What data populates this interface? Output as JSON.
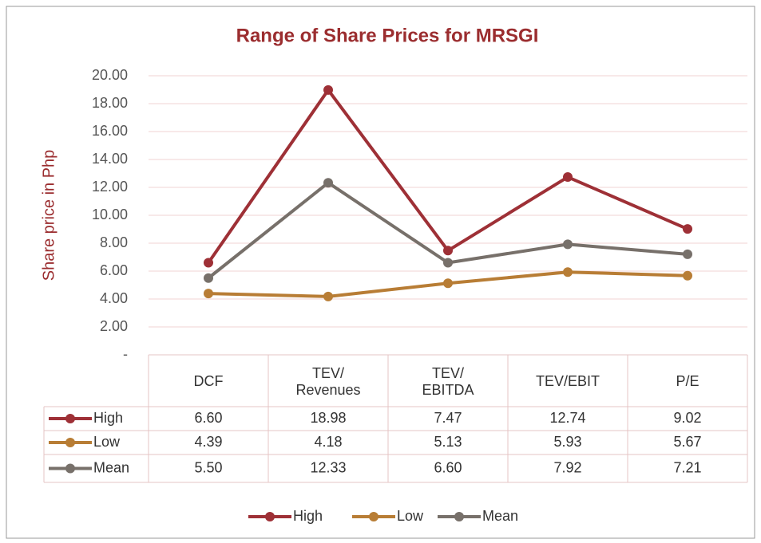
{
  "chart_data": {
    "type": "line",
    "title": "Range of Share Prices for MRSGI",
    "ylabel": "Share price in Php",
    "categories": [
      "DCF",
      "TEV/ Revenues",
      "TEV/ EBITDA",
      "TEV/EBIT",
      "P/E"
    ],
    "series": [
      {
        "name": "High",
        "color": "#9e3036",
        "values": [
          6.6,
          18.98,
          7.47,
          12.74,
          9.02
        ],
        "value_labels": [
          "6.60",
          "18.98",
          "7.47",
          "12.74",
          "9.02"
        ]
      },
      {
        "name": "Low",
        "color": "#b87d35",
        "values": [
          4.39,
          4.18,
          5.13,
          5.93,
          5.67
        ],
        "value_labels": [
          "4.39",
          "4.18",
          "5.13",
          "5.93",
          "5.67"
        ]
      },
      {
        "name": "Mean",
        "color": "#77706a",
        "values": [
          5.5,
          12.33,
          6.6,
          7.92,
          7.21
        ],
        "value_labels": [
          "5.50",
          "12.33",
          "6.60",
          "7.92",
          "7.21"
        ]
      }
    ],
    "ylim": [
      0,
      20
    ],
    "yticks": [
      {
        "value": 0,
        "label": "-"
      },
      {
        "value": 2,
        "label": "2.00"
      },
      {
        "value": 4,
        "label": "4.00"
      },
      {
        "value": 6,
        "label": "6.00"
      },
      {
        "value": 8,
        "label": "8.00"
      },
      {
        "value": 10,
        "label": "10.00"
      },
      {
        "value": 12,
        "label": "12.00"
      },
      {
        "value": 14,
        "label": "14.00"
      },
      {
        "value": 16,
        "label": "16.00"
      },
      {
        "value": 18,
        "label": "18.00"
      },
      {
        "value": 20,
        "label": "20.00"
      }
    ],
    "grid": true,
    "legend": "bottom"
  }
}
